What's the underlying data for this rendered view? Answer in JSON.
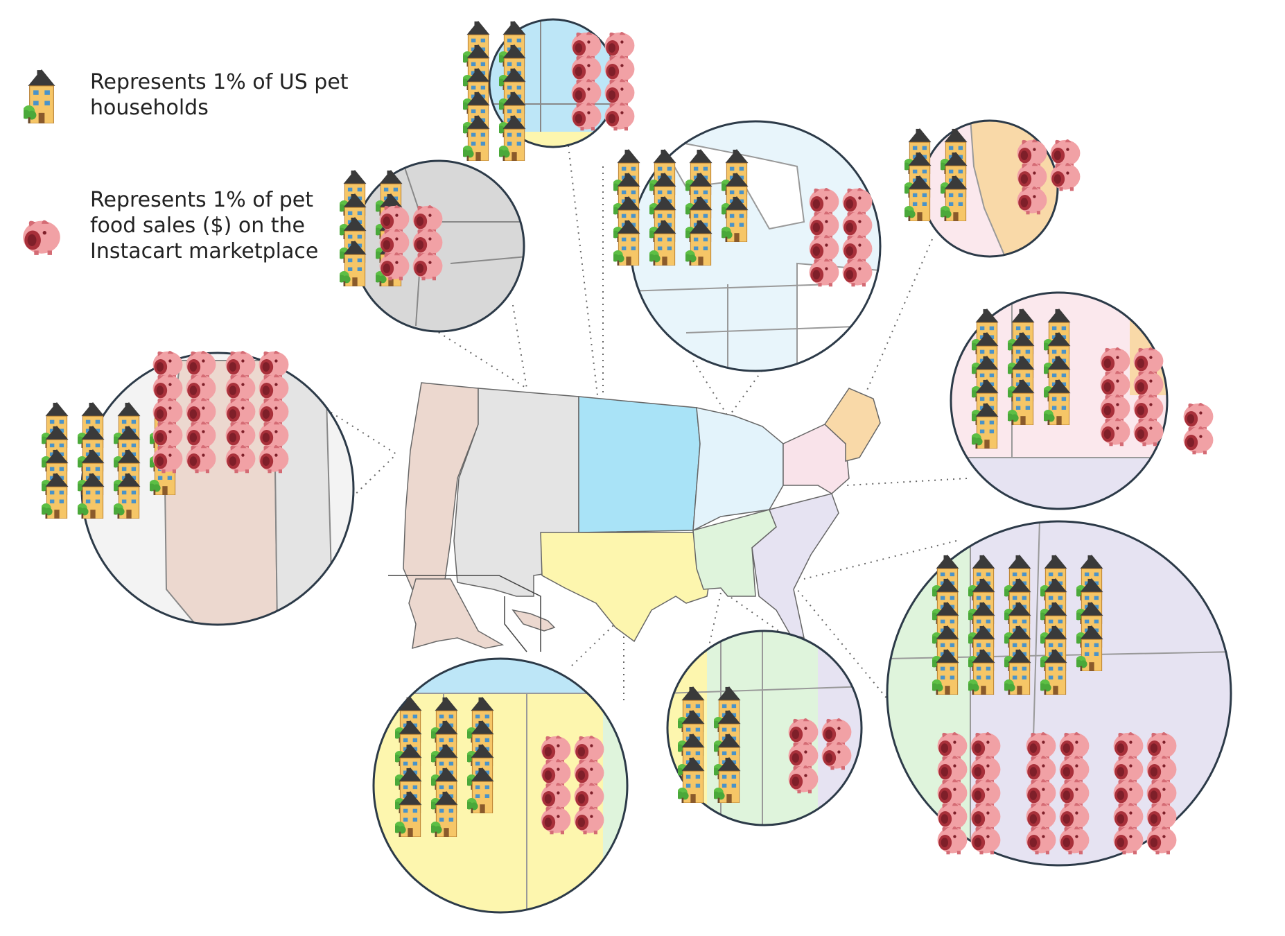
{
  "legend": {
    "household": {
      "text": "Represents 1% of US pet households",
      "icon": "house-icon"
    },
    "sales": {
      "text": "Represents 1% of pet food sales ($) on the Instacart marketplace",
      "icon": "piggy-bank-icon"
    }
  },
  "colors": {
    "west": "#ecd8cf",
    "mountain": "#e4e4e4",
    "plains": "#a9e3f7",
    "midwest": "#e3f3fb",
    "northeast": "#f9e3ea",
    "new_england": "#f9d9a8",
    "southwest": "#fdf6ae",
    "south_central": "#dff4dc",
    "southeast": "#e6e3f2",
    "house": "#f6c667",
    "roof": "#3a3a3a",
    "tree": "#5dbf45",
    "piggy": "#f1a1a5",
    "piggy_dark": "#a8303a",
    "circle_stroke": "#2c3a48"
  },
  "regions": [
    {
      "id": "pacific",
      "households": 15,
      "sales": 21
    },
    {
      "id": "mountain",
      "households": 8,
      "sales": 6
    },
    {
      "id": "north-central",
      "households": 10,
      "sales": 8
    },
    {
      "id": "great-lakes",
      "households": 15,
      "sales": 8
    },
    {
      "id": "new-england",
      "households": 6,
      "sales": 5
    },
    {
      "id": "mid-atlantic",
      "households": 13,
      "sales": 10
    },
    {
      "id": "south-atlantic",
      "households": 24,
      "sales": 30
    },
    {
      "id": "east-south-central",
      "households": 8,
      "sales": 5
    },
    {
      "id": "west-south-central",
      "households": 14,
      "sales": 8
    }
  ]
}
